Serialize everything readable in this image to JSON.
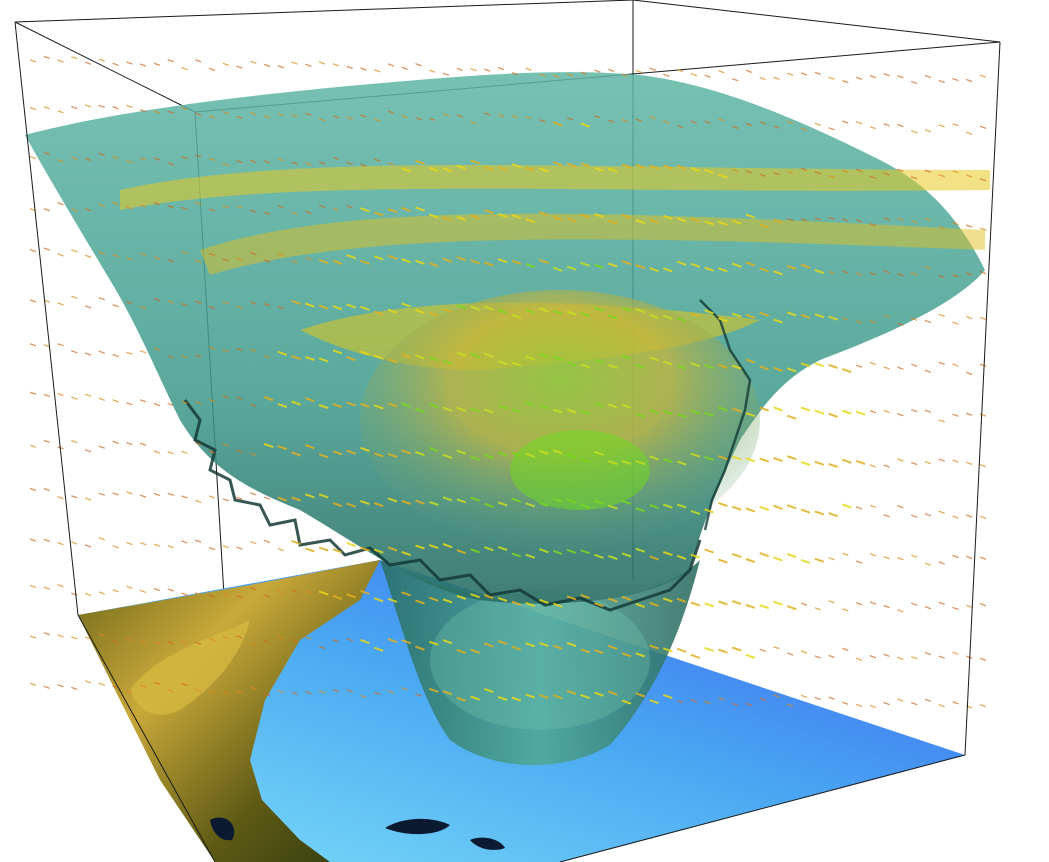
{
  "scene": {
    "background_color": "#ffffff",
    "box_line_color": "#1a1a1a",
    "surface_color": "#3e9a8c",
    "surface_dark_color": "#1f4f4a",
    "floor_color_light": "#5ec8f0",
    "floor_color_deep": "#3f6cf0",
    "terrain_color_yellow": "#c9a93a",
    "terrain_color_dark": "#3a3a12",
    "arrow_colors": [
      "#d2691e",
      "#e08a1a",
      "#e0b020",
      "#e8d818",
      "#c8e020",
      "#7ad81e"
    ]
  }
}
